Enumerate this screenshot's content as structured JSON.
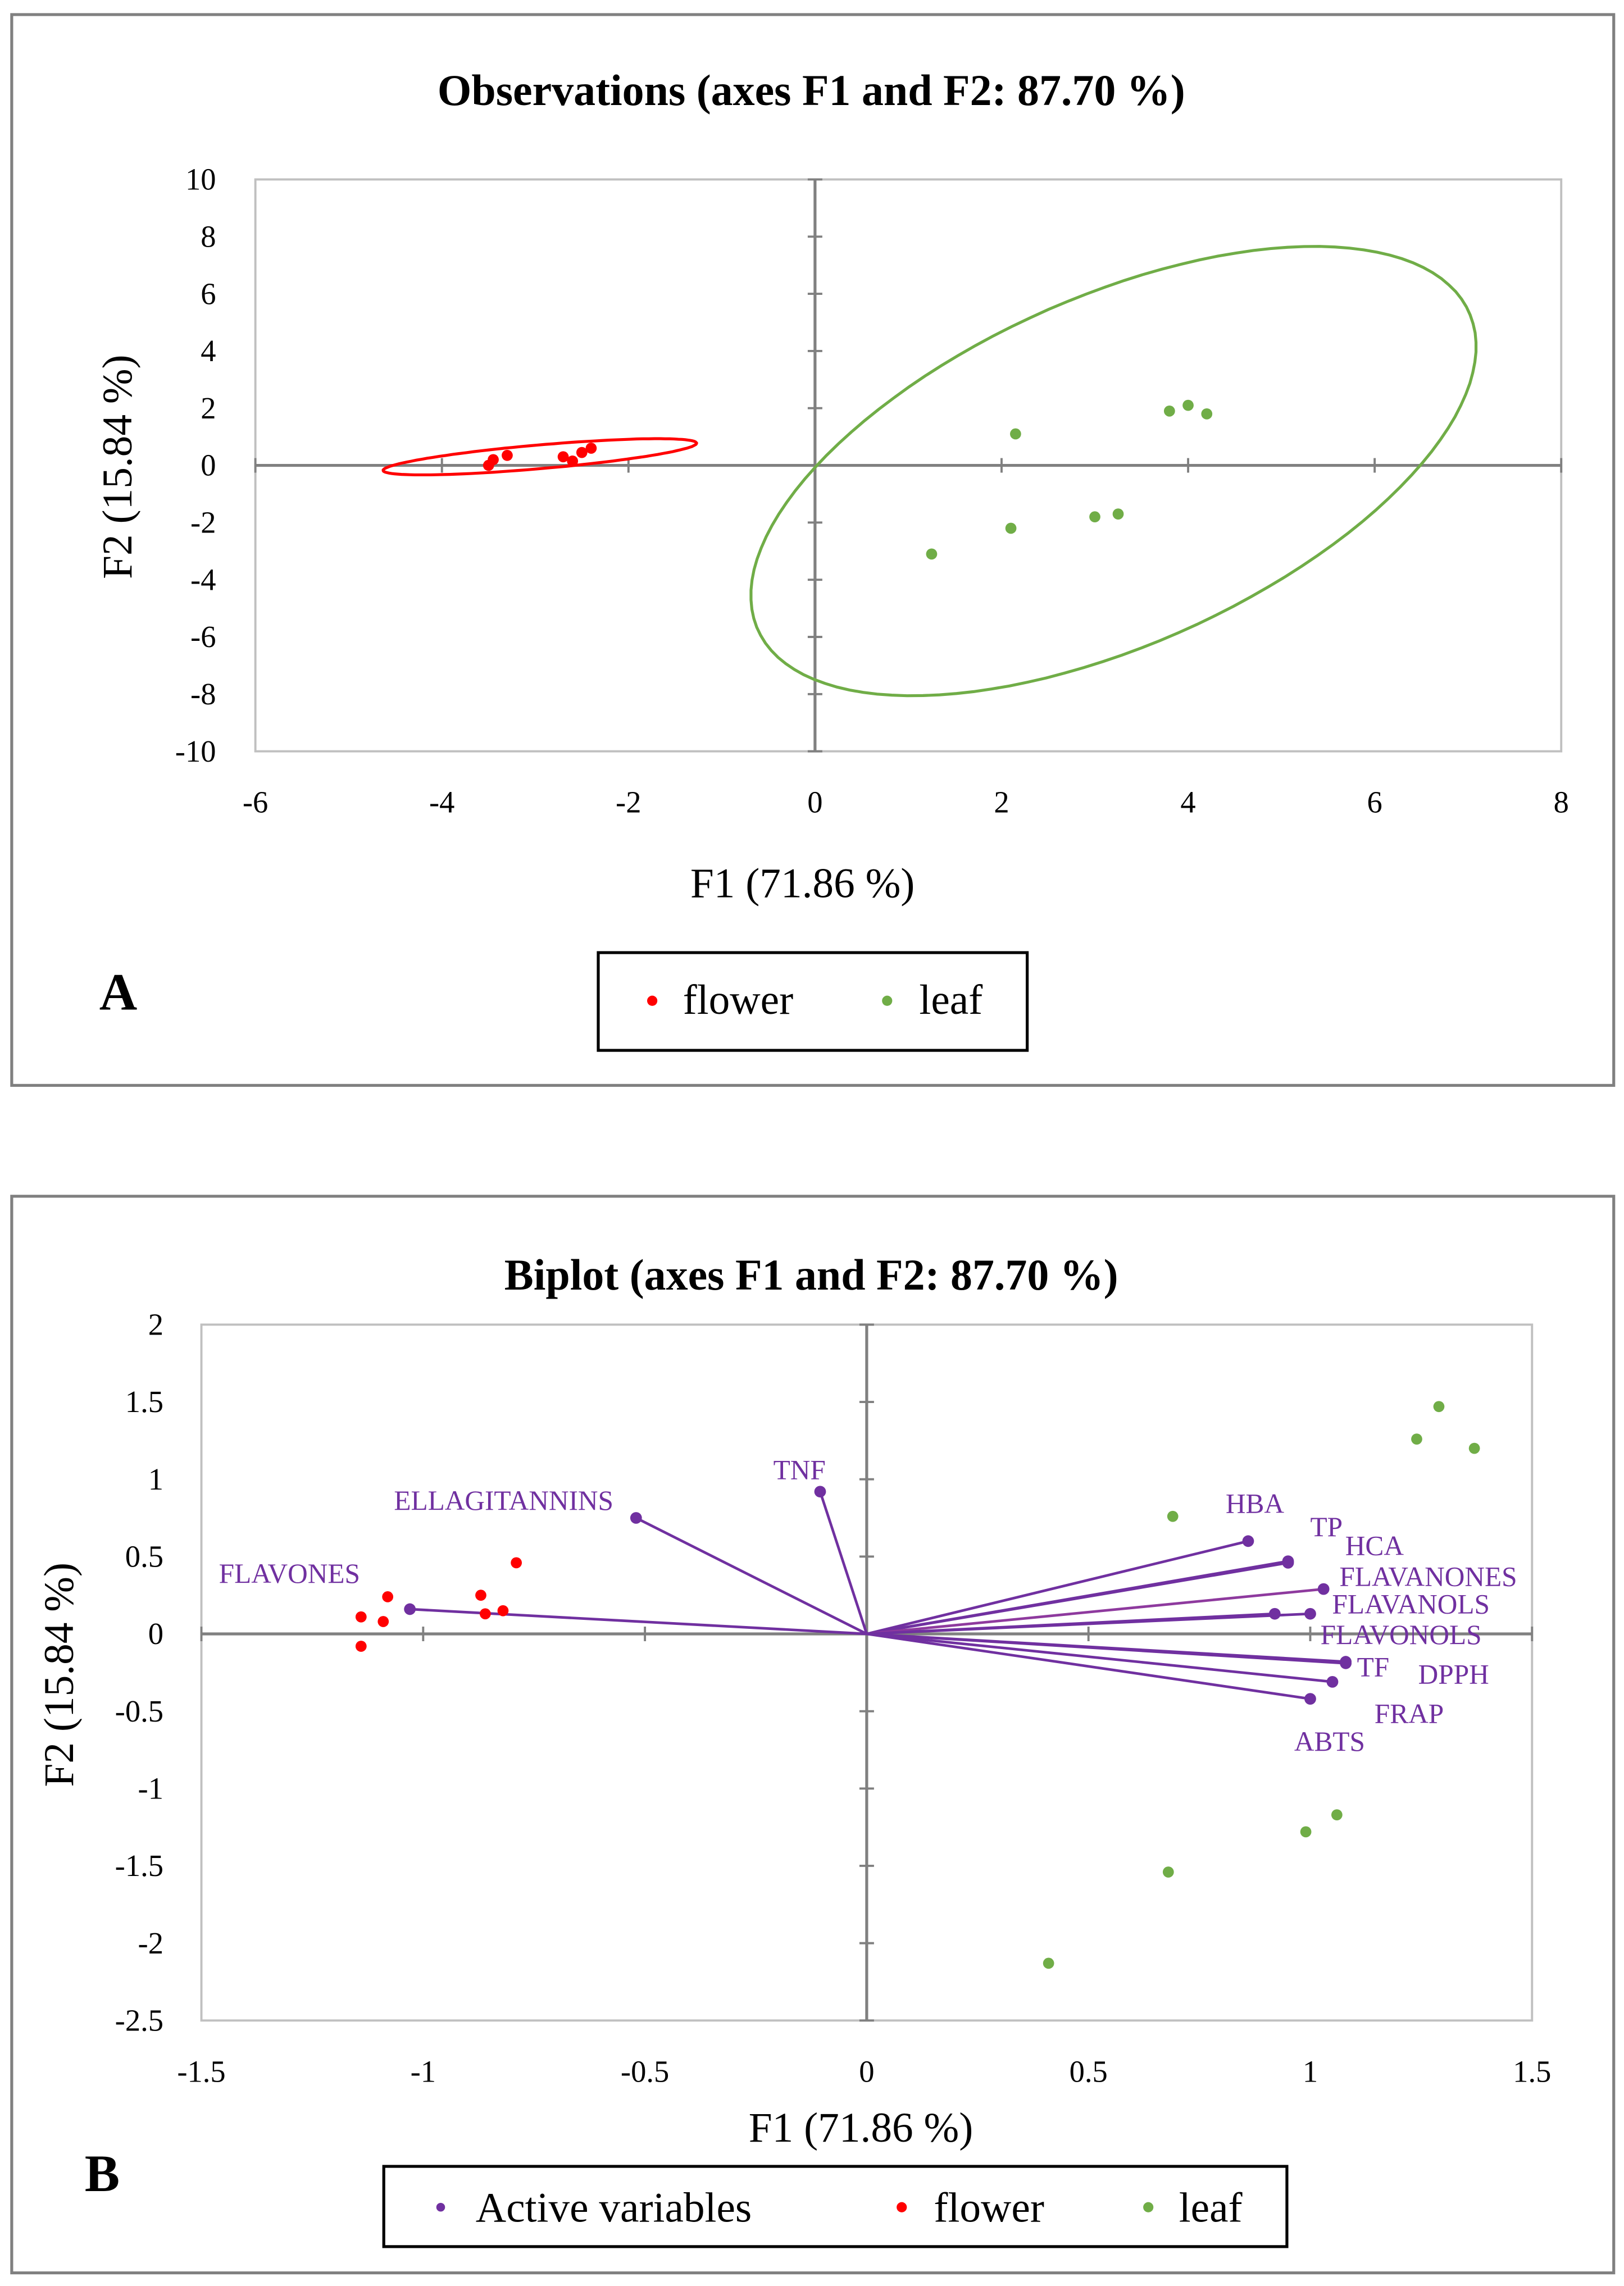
{
  "colors": {
    "flower": "#ff0000",
    "leaf": "#70ad47",
    "variables": "#7030a0",
    "axis": "#808080",
    "grid_border": "#c0c0c0"
  },
  "chart_data": [
    {
      "type": "scatter",
      "panel_label": "A",
      "title": "Observations (axes F1 and F2: 87.70 %)",
      "xlabel": "F1 (71.86 %)",
      "ylabel": "F2 (15.84 %)",
      "xlim": [
        -6,
        8
      ],
      "ylim": [
        -10,
        10
      ],
      "xticks": [
        "-6",
        "-4",
        "-2",
        "0",
        "2",
        "4",
        "6",
        "8"
      ],
      "yticks": [
        "10",
        "8",
        "6",
        "4",
        "2",
        "0",
        "-2",
        "-4",
        "-6",
        "-8",
        "-10"
      ],
      "grid": false,
      "legend": {
        "placement": "bottom",
        "entries": [
          "flower",
          "leaf"
        ]
      },
      "series": [
        {
          "name": "flower",
          "points": [
            [
              -3.5,
              0.0
            ],
            [
              -3.45,
              0.2
            ],
            [
              -3.3,
              0.35
            ],
            [
              -2.7,
              0.3
            ],
            [
              -2.6,
              0.15
            ],
            [
              -2.5,
              0.45
            ],
            [
              -2.4,
              0.6
            ]
          ]
        },
        {
          "name": "leaf",
          "points": [
            [
              1.25,
              -3.1
            ],
            [
              2.1,
              -2.2
            ],
            [
              2.15,
              1.1
            ],
            [
              3.0,
              -1.8
            ],
            [
              3.25,
              -1.7
            ],
            [
              3.8,
              1.9
            ],
            [
              4.0,
              2.1
            ],
            [
              4.2,
              1.8
            ]
          ]
        }
      ],
      "ellipses": [
        {
          "name": "flower",
          "center": [
            -2.95,
            0.3
          ],
          "a": 1.75,
          "b": 0.4,
          "angle_deg": 16.7
        },
        {
          "name": "leaf",
          "center": [
            3.2,
            -0.2
          ],
          "a": 8.2,
          "b": 3.1,
          "angle_deg": 72
        }
      ]
    },
    {
      "type": "scatter",
      "panel_label": "B",
      "title": "Biplot (axes F1 and F2: 87.70 %)",
      "xlabel": "F1 (71.86 %)",
      "ylabel": "F2 (15.84 %)",
      "xlim": [
        -1.5,
        1.5
      ],
      "ylim": [
        -2.5,
        2
      ],
      "xticks": [
        "-1.5",
        "-1",
        "-0.5",
        "0",
        "0.5",
        "1",
        "1.5"
      ],
      "yticks": [
        "2",
        "1.5",
        "1",
        "0.5",
        "0",
        "-0.5",
        "-1",
        "-1.5",
        "-2",
        "-2.5"
      ],
      "grid": false,
      "legend": {
        "placement": "bottom",
        "entries": [
          "Active variables",
          "flower",
          "leaf"
        ]
      },
      "series": [
        {
          "name": "flower",
          "points": [
            [
              -1.14,
              0.11
            ],
            [
              -1.08,
              0.24
            ],
            [
              -1.09,
              0.08
            ],
            [
              -1.14,
              -0.08
            ],
            [
              -0.87,
              0.25
            ],
            [
              -0.86,
              0.13
            ],
            [
              -0.82,
              0.15
            ],
            [
              -0.79,
              0.46
            ]
          ]
        },
        {
          "name": "leaf",
          "points": [
            [
              1.29,
              1.47
            ],
            [
              1.24,
              1.26
            ],
            [
              1.37,
              1.2
            ],
            [
              0.69,
              0.76
            ],
            [
              1.06,
              -1.17
            ],
            [
              0.99,
              -1.28
            ],
            [
              0.68,
              -1.54
            ],
            [
              0.41,
              -2.13
            ]
          ]
        }
      ],
      "variables": [
        {
          "name": "FLAVONES",
          "x": -1.03,
          "y": 0.16
        },
        {
          "name": "ELLAGITANNINS",
          "x": -0.52,
          "y": 0.75
        },
        {
          "name": "TNF",
          "x": -0.105,
          "y": 0.92
        },
        {
          "name": "HBA",
          "x": 0.86,
          "y": 0.6
        },
        {
          "name": "TP",
          "x": 0.95,
          "y": 0.47
        },
        {
          "name": "HCA",
          "x": 0.95,
          "y": 0.46
        },
        {
          "name": "FLAVANONES",
          "x": 1.03,
          "y": 0.29
        },
        {
          "name": "FLAVANOLS",
          "x": 1.0,
          "y": 0.13
        },
        {
          "name": "FLAVONOLS",
          "x": 0.92,
          "y": 0.13
        },
        {
          "name": "TF",
          "x": 1.08,
          "y": -0.18
        },
        {
          "name": "DPPH",
          "x": 1.08,
          "y": -0.19
        },
        {
          "name": "FRAP",
          "x": 1.05,
          "y": -0.31
        },
        {
          "name": "ABTS",
          "x": 1.0,
          "y": -0.42
        }
      ]
    }
  ]
}
